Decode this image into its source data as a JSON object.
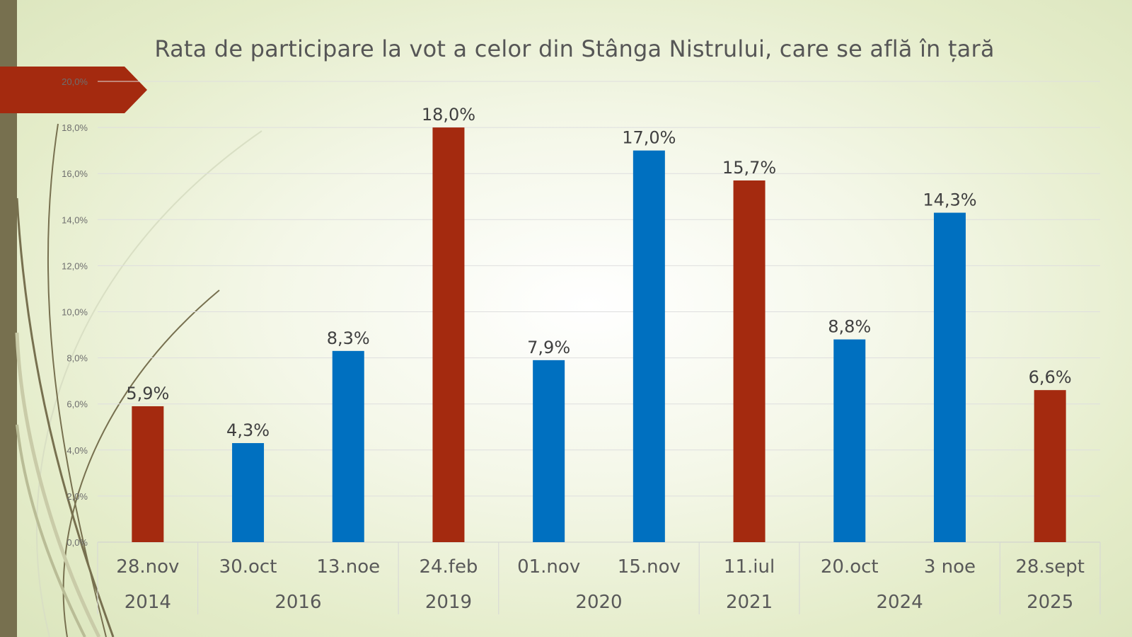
{
  "colors": {
    "accent_red": "#a42a0f",
    "accent_blue": "#0070c0",
    "band": "#77704f"
  },
  "chart_data": {
    "type": "bar",
    "title": "Rata de participare la vot a celor din Stânga Nistrului, care se află în țară",
    "xlabel": "",
    "ylabel": "",
    "ylim": [
      0,
      20
    ],
    "yticks": [
      "0,0%",
      "2,0%",
      "4,0%",
      "6,0%",
      "8,0%",
      "10,0%",
      "12,0%",
      "14,0%",
      "16,0%",
      "18,0%",
      "20,0%"
    ],
    "categories": [
      "28.nov",
      "30.oct",
      "13.noe",
      "24.feb",
      "01.nov",
      "15.nov",
      "11.iul",
      "20.oct",
      "3 noe",
      "28.sept"
    ],
    "values": [
      5.9,
      4.3,
      8.3,
      18.0,
      7.9,
      17.0,
      15.7,
      8.8,
      14.3,
      6.6
    ],
    "data_labels": [
      "5,9%",
      "4,3%",
      "8,3%",
      "18,0%",
      "7,9%",
      "17,0%",
      "15,7%",
      "8,8%",
      "14,3%",
      "6,6%"
    ],
    "bar_colors": [
      "#a42a0f",
      "#0070c0",
      "#0070c0",
      "#a42a0f",
      "#0070c0",
      "#0070c0",
      "#a42a0f",
      "#0070c0",
      "#0070c0",
      "#a42a0f"
    ],
    "groups": [
      {
        "label": "2014",
        "count": 1
      },
      {
        "label": "2016",
        "count": 2
      },
      {
        "label": "2019",
        "count": 1
      },
      {
        "label": "2020",
        "count": 2
      },
      {
        "label": "2021",
        "count": 1
      },
      {
        "label": "2024",
        "count": 2
      },
      {
        "label": "2025",
        "count": 1
      }
    ],
    "grid": true,
    "legend": "none"
  }
}
